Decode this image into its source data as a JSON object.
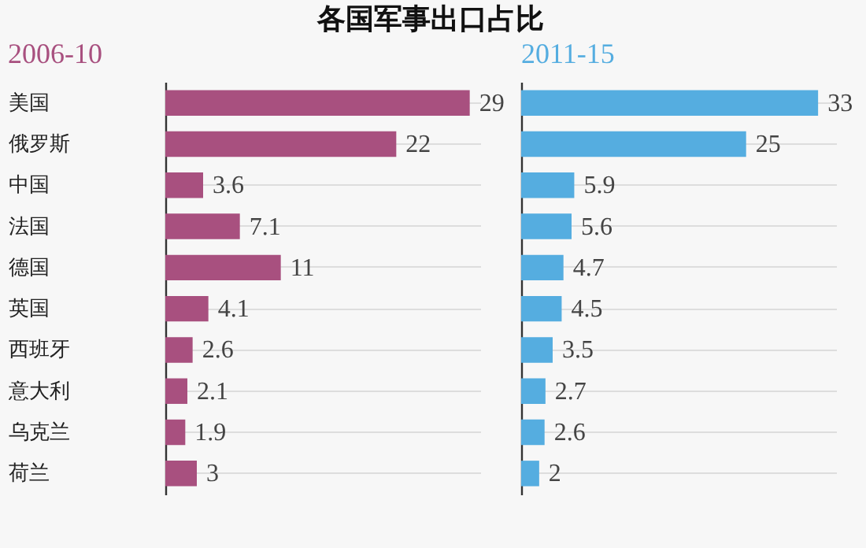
{
  "chart_data": [
    {
      "type": "bar",
      "title": "各国军事出口占比",
      "orientation": "horizontal",
      "categories": [
        "美国",
        "俄罗斯",
        "中国",
        "法国",
        "德国",
        "英国",
        "西班牙",
        "意大利",
        "乌克兰",
        "荷兰"
      ],
      "series": [
        {
          "name": "2006-10",
          "color": "#a8507f",
          "values": [
            29,
            22,
            3.6,
            7.1,
            11,
            4.1,
            2.6,
            2.1,
            1.9,
            3
          ]
        }
      ],
      "data_labels": true,
      "grid": "y",
      "tick_labels": "y"
    },
    {
      "type": "bar",
      "orientation": "horizontal",
      "categories": [
        null,
        null,
        null,
        null,
        null,
        null,
        null,
        null,
        null,
        null
      ],
      "series": [
        {
          "name": "2011-15",
          "color": "#55ade0",
          "values": [
            33,
            25,
            5.9,
            5.6,
            4.7,
            4.5,
            3.5,
            2.7,
            2.6,
            2
          ]
        }
      ],
      "data_labels": true,
      "grid": "y",
      "tick_labels": false
    }
  ]
}
